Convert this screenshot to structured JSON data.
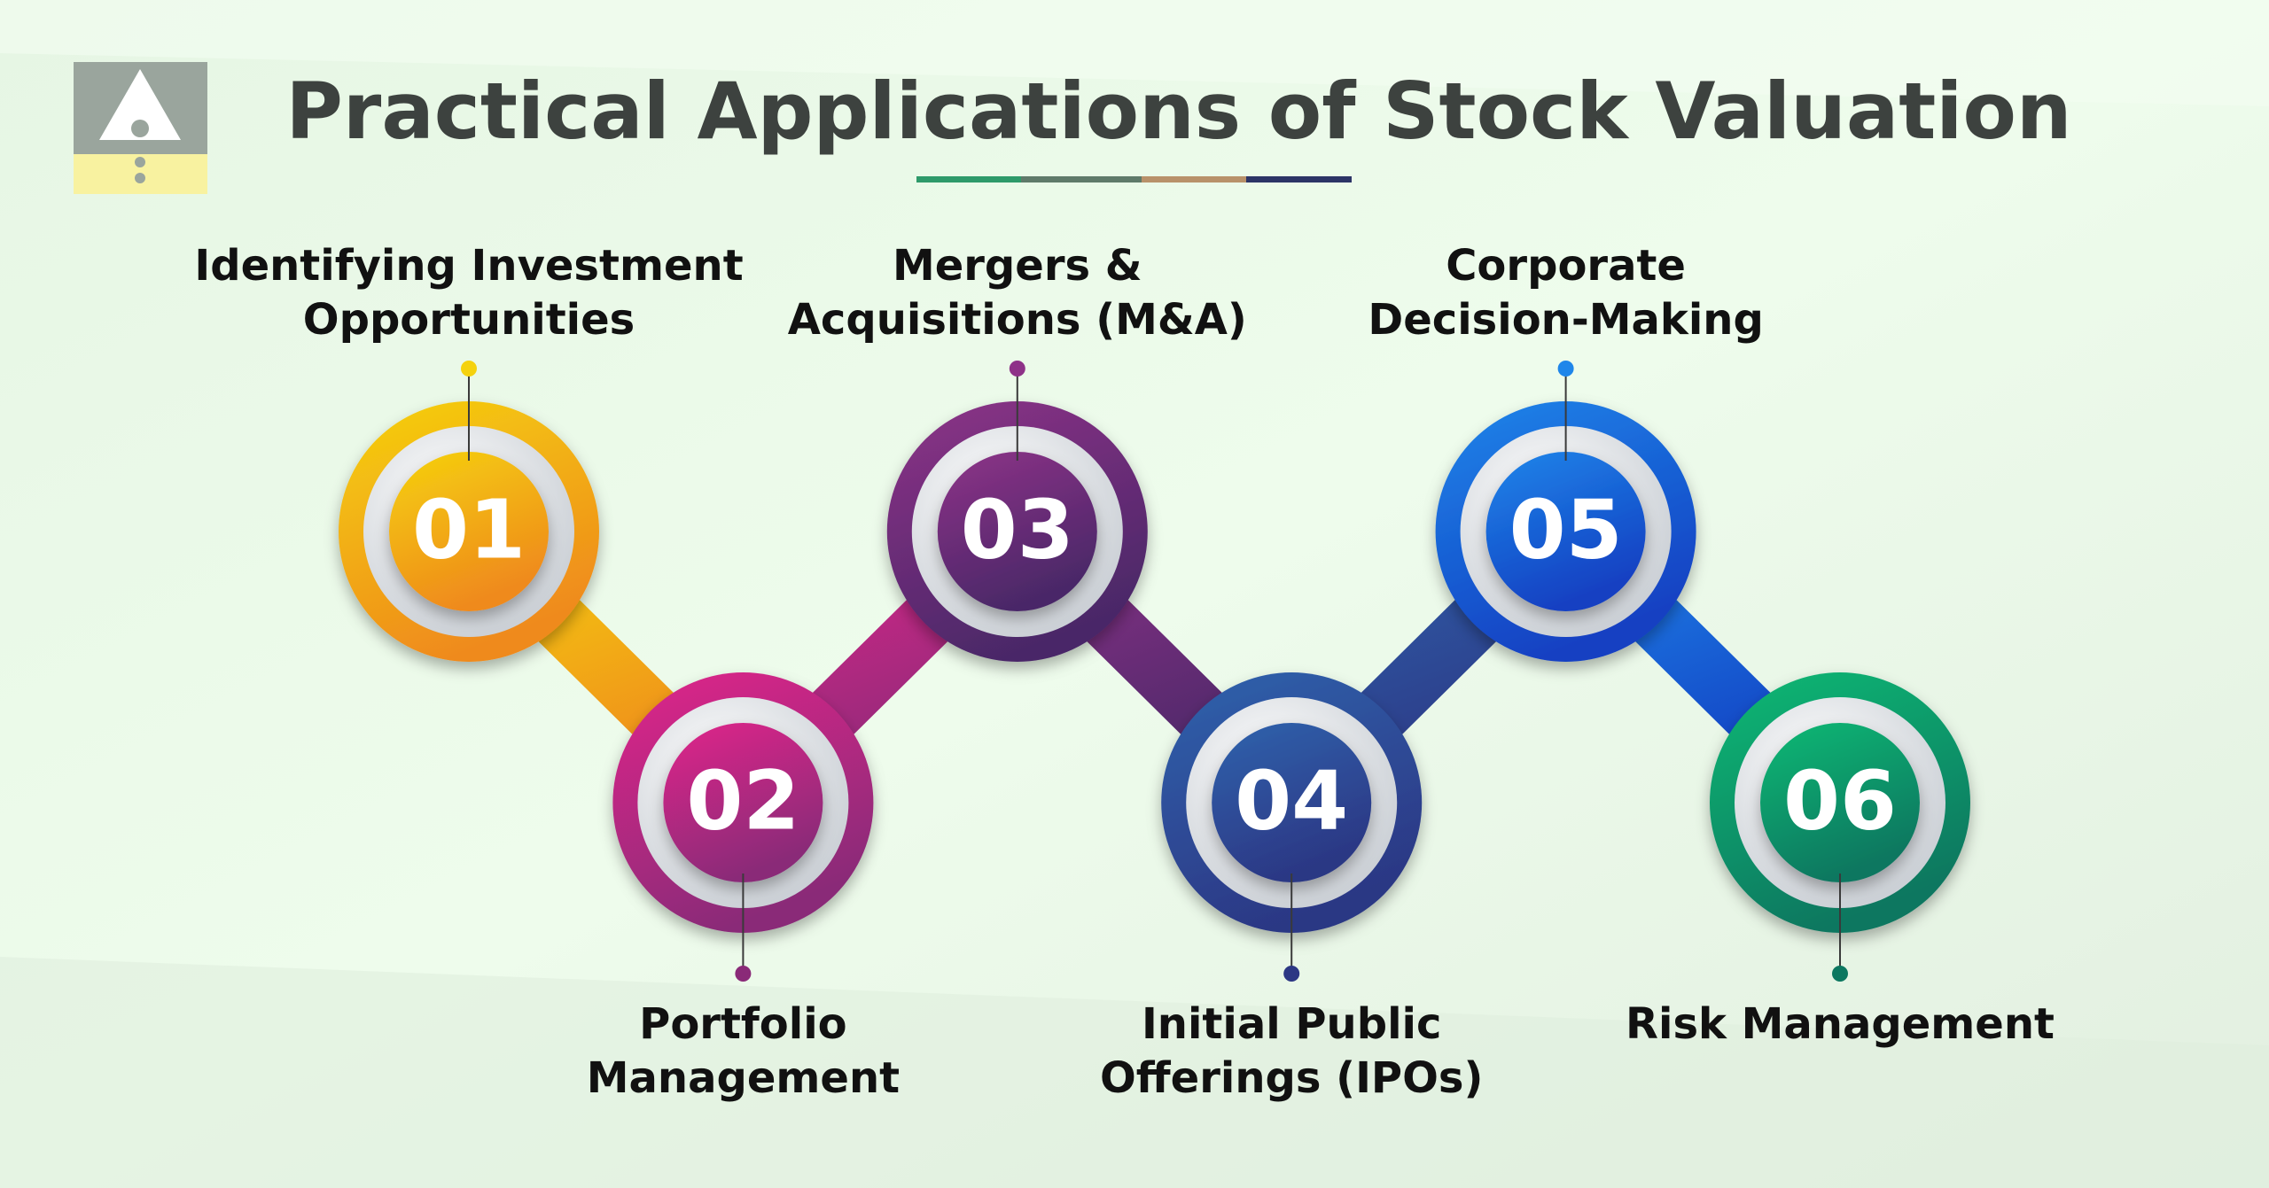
{
  "header": {
    "title": "Practical Applications of Stock Valuation"
  },
  "steps": [
    {
      "number": "01",
      "label": [
        "Identifying Investment",
        "Opportunities"
      ]
    },
    {
      "number": "02",
      "label": [
        "Portfolio",
        "Management"
      ]
    },
    {
      "number": "03",
      "label": [
        "Mergers &",
        "Acquisitions (M&A)"
      ]
    },
    {
      "number": "04",
      "label": [
        "Initial Public",
        "Offerings (IPOs)"
      ]
    },
    {
      "number": "05",
      "label": [
        "Corporate",
        "Decision-Making"
      ]
    },
    {
      "number": "06",
      "label": [
        "Risk Management"
      ]
    }
  ]
}
